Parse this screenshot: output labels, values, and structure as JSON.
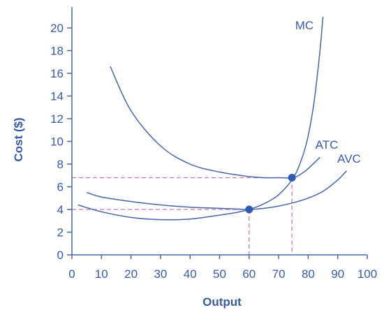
{
  "chart_data": {
    "type": "line",
    "title": "",
    "xlabel": "Output",
    "ylabel": "Cost ($)",
    "xlim": [
      0,
      100
    ],
    "ylim": [
      0,
      21
    ],
    "x_ticks": [
      0,
      10,
      20,
      30,
      40,
      50,
      60,
      70,
      80,
      90,
      100
    ],
    "y_ticks": [
      0,
      2,
      4,
      6,
      8,
      10,
      12,
      14,
      16,
      18,
      20
    ],
    "grid": false,
    "legend": "none",
    "series": [
      {
        "name": "MC",
        "x": [
          2,
          10,
          20,
          30,
          40,
          50,
          55,
          60,
          65,
          70,
          75,
          78,
          80,
          82,
          84,
          85
        ],
        "y": [
          4.4,
          3.8,
          3.3,
          3.1,
          3.15,
          3.5,
          3.7,
          4.0,
          4.5,
          5.3,
          6.8,
          8.6,
          10.5,
          13.5,
          18.0,
          21.0
        ]
      },
      {
        "name": "ATC",
        "x": [
          13,
          20,
          30,
          40,
          50,
          60,
          65,
          70,
          75,
          78,
          80,
          82,
          84
        ],
        "y": [
          16.6,
          12.7,
          9.6,
          8.0,
          7.3,
          6.9,
          6.8,
          6.8,
          6.8,
          7.2,
          7.6,
          8.1,
          8.6
        ]
      },
      {
        "name": "AVC",
        "x": [
          5,
          10,
          20,
          30,
          40,
          50,
          55,
          60,
          65,
          70,
          75,
          80,
          85,
          90,
          93
        ],
        "y": [
          5.5,
          5.1,
          4.7,
          4.4,
          4.2,
          4.1,
          4.05,
          4.0,
          4.1,
          4.3,
          4.6,
          5.0,
          5.6,
          6.6,
          7.4
        ]
      }
    ],
    "points": [
      {
        "x": 60,
        "y": 4.0
      },
      {
        "x": 74.5,
        "y": 6.8
      }
    ],
    "reference_lines": [
      {
        "x": 60,
        "y": 4.0
      },
      {
        "x": 74.5,
        "y": 6.8
      }
    ],
    "colors": {
      "curve": "#4a63ad",
      "axis": "#4a63ad",
      "point": "#2f5ab8",
      "dashed": "#c27bb4",
      "text": "#3a5aa8"
    }
  }
}
